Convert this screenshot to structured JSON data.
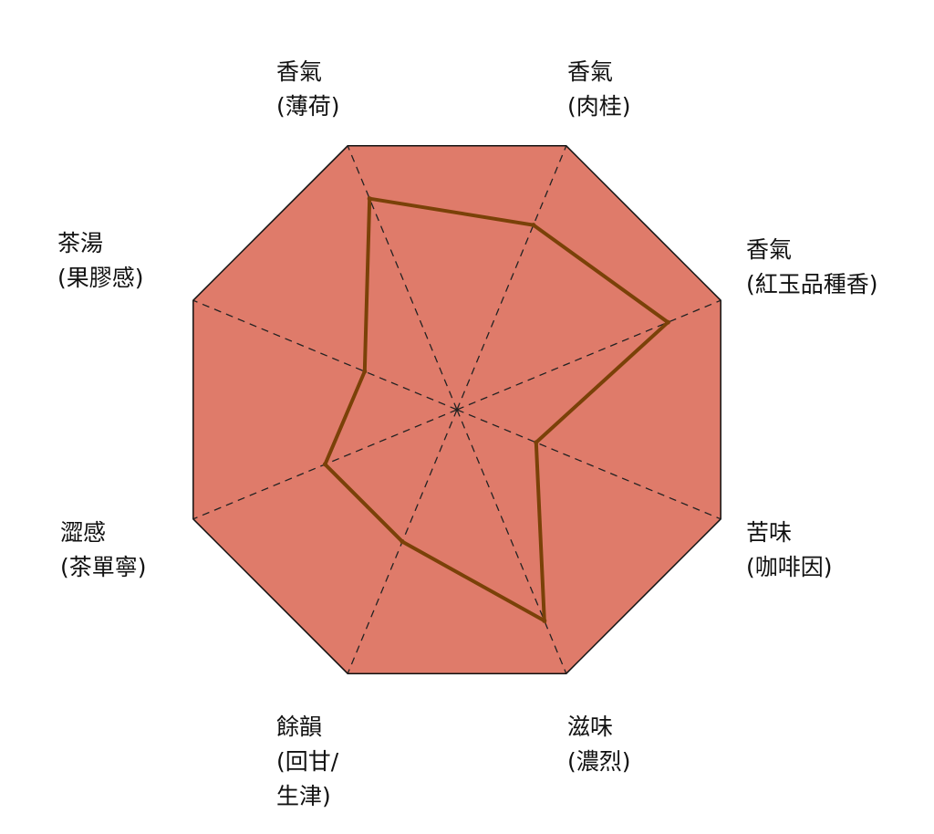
{
  "chart_data": {
    "type": "radar",
    "title": "",
    "max": 10,
    "axes": [
      {
        "label_lines": [
          "香氣",
          "(肉桂)"
        ],
        "value": 7
      },
      {
        "label_lines": [
          "香氣",
          "(紅玉品種香)"
        ],
        "value": 8
      },
      {
        "label_lines": [
          "苦味",
          "(咖啡因)"
        ],
        "value": 3
      },
      {
        "label_lines": [
          "滋味",
          "(濃烈)"
        ],
        "value": 8
      },
      {
        "label_lines": [
          "餘韻",
          "(回甘/",
          "生津)"
        ],
        "value": 5
      },
      {
        "label_lines": [
          "澀感",
          "(茶單寧)"
        ],
        "value": 5
      },
      {
        "label_lines": [
          "茶湯",
          "(果膠感)"
        ],
        "value": 3.5
      },
      {
        "label_lines": [
          "香氣",
          "(薄荷)"
        ],
        "value": 8
      }
    ],
    "colors": {
      "fill": "#df7b6a",
      "outline": "#111111",
      "spokes": "#222222",
      "series_line": "#7a4108"
    },
    "grid": "dashed spokes",
    "legend": "none"
  }
}
